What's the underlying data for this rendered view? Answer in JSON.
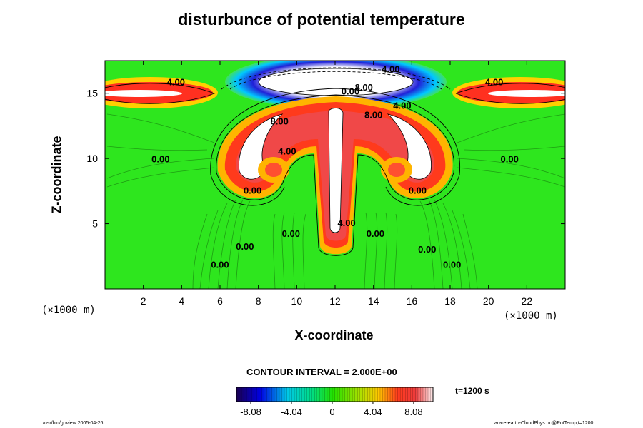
{
  "chart_data": {
    "type": "heatmap",
    "title": "disturbunce of potential temperature",
    "xlabel": "X-coordinate",
    "ylabel": "Z-coordinate",
    "xunit": "(×1000 m)",
    "yunit": "(×1000 m)",
    "xlim": [
      0,
      24
    ],
    "ylim": [
      0,
      17.5
    ],
    "xticks": [
      2,
      4,
      6,
      8,
      10,
      12,
      14,
      16,
      18,
      20,
      22
    ],
    "yticks": [
      5,
      10,
      15
    ],
    "contour_labels": [
      {
        "text": "4.00",
        "x": 3.7,
        "y": 15.6
      },
      {
        "text": "4.00",
        "x": 20.3,
        "y": 15.6
      },
      {
        "text": "4.00",
        "x": 14.9,
        "y": 16.6
      },
      {
        "text": "0.00",
        "x": 12.8,
        "y": 14.9
      },
      {
        "text": "8.00",
        "x": 13.5,
        "y": 15.2
      },
      {
        "text": "4.00",
        "x": 15.5,
        "y": 13.8
      },
      {
        "text": "8.00",
        "x": 14.0,
        "y": 13.1
      },
      {
        "text": "8.00",
        "x": 9.1,
        "y": 12.6
      },
      {
        "text": "4.00",
        "x": 9.5,
        "y": 10.3
      },
      {
        "text": "0.00",
        "x": 2.9,
        "y": 9.7
      },
      {
        "text": "0.00",
        "x": 21.1,
        "y": 9.7
      },
      {
        "text": "0.00",
        "x": 7.7,
        "y": 7.3
      },
      {
        "text": "0.00",
        "x": 16.3,
        "y": 7.3
      },
      {
        "text": "4.00",
        "x": 12.6,
        "y": 4.8
      },
      {
        "text": "0.00",
        "x": 9.7,
        "y": 4.0
      },
      {
        "text": "0.00",
        "x": 14.1,
        "y": 4.0
      },
      {
        "text": "0.00",
        "x": 7.3,
        "y": 3.0
      },
      {
        "text": "0.00",
        "x": 16.8,
        "y": 2.8
      },
      {
        "text": "0.00",
        "x": 6.0,
        "y": 1.6
      },
      {
        "text": "0.00",
        "x": 18.1,
        "y": 1.6
      }
    ],
    "contour_interval": "CONTOUR INTERVAL = 2.000E+00",
    "colorbar": {
      "min": -9.5,
      "max": 10.0,
      "ticks": [
        -8.08,
        -4.04,
        0,
        4.04,
        8.08
      ],
      "tick_labels": [
        "-8.08",
        "-4.04",
        "0",
        "4.04",
        "8.08"
      ]
    },
    "time_label": "t=1200 s",
    "grid": false
  },
  "footer": {
    "left": "/usr/bin/gpview 2005-04-26",
    "right": "arare-earth-CloudPhys.nc@PotTemp,t=1200"
  }
}
